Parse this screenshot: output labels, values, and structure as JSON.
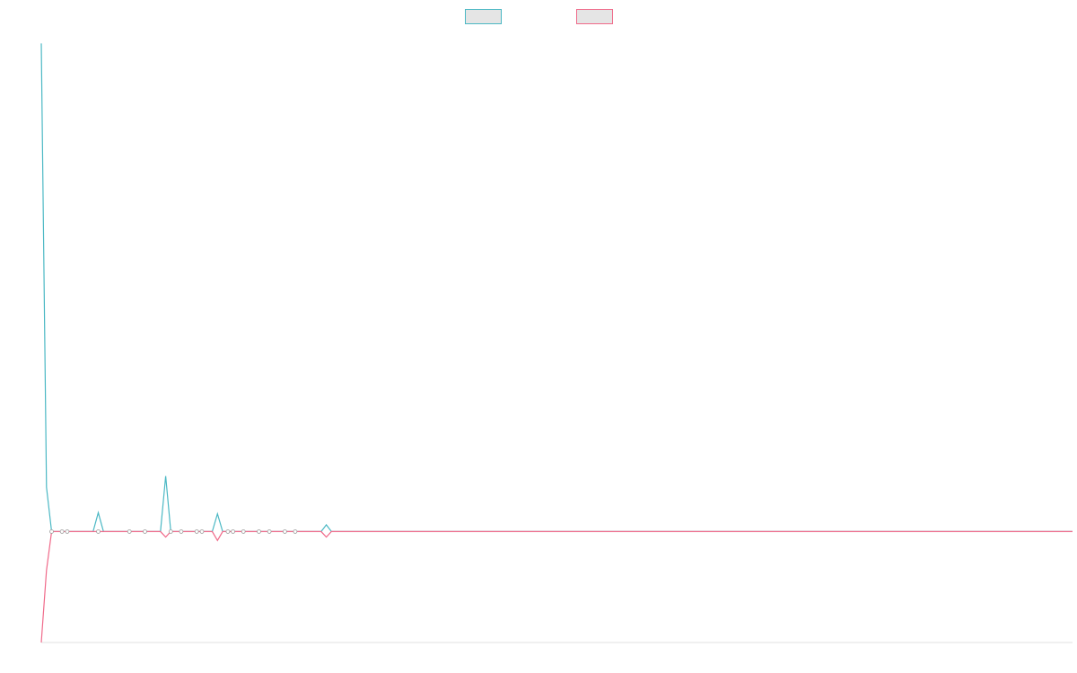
{
  "chart_data": {
    "type": "line",
    "title": "",
    "xlabel": "",
    "ylabel": "",
    "grid": false,
    "legend_position": "top-center",
    "x_count": 200,
    "ylim": [
      -1,
      4.5
    ],
    "series": [
      {
        "color": "#4bb8c4",
        "points": [
          [
            0,
            4.4
          ],
          [
            1,
            0.4
          ],
          [
            2,
            0
          ],
          [
            10,
            0
          ],
          [
            11,
            0.17
          ],
          [
            12,
            0
          ],
          [
            23,
            0
          ],
          [
            24,
            0.5
          ],
          [
            25,
            0
          ],
          [
            33,
            0
          ],
          [
            34,
            0.16
          ],
          [
            35,
            0
          ],
          [
            54,
            0
          ],
          [
            55,
            0.06
          ],
          [
            56,
            0
          ],
          [
            199,
            0
          ]
        ]
      },
      {
        "color": "#f06a8a",
        "points": [
          [
            0,
            -1.0
          ],
          [
            1,
            -0.35
          ],
          [
            2,
            0
          ],
          [
            23,
            0
          ],
          [
            24,
            -0.05
          ],
          [
            25,
            0
          ],
          [
            33,
            0
          ],
          [
            34,
            -0.08
          ],
          [
            35,
            0
          ],
          [
            54,
            0
          ],
          [
            55,
            -0.05
          ],
          [
            56,
            0
          ],
          [
            199,
            0
          ]
        ]
      }
    ],
    "markers": [
      [
        2,
        0
      ],
      [
        4,
        0
      ],
      [
        5,
        0
      ],
      [
        11,
        0
      ],
      [
        17,
        0
      ],
      [
        20,
        0
      ],
      [
        25,
        0
      ],
      [
        27,
        0
      ],
      [
        30,
        0
      ],
      [
        31,
        0
      ],
      [
        36,
        0
      ],
      [
        37,
        0
      ],
      [
        39,
        0
      ],
      [
        42,
        0
      ],
      [
        44,
        0
      ],
      [
        47,
        0
      ],
      [
        49,
        0
      ]
    ]
  }
}
